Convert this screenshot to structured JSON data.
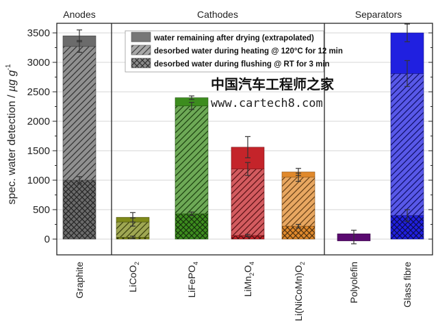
{
  "chart_data": {
    "type": "bar",
    "stacked": true,
    "title": "",
    "xlabel": "",
    "ylabel": "spec. water detection / µg g⁻¹",
    "ylabel_parts": {
      "main": "spec. water detection / ",
      "unit": "µg g",
      "exp": "-1"
    },
    "ylim": [
      -200,
      3700
    ],
    "yticks": [
      0,
      500,
      1000,
      1500,
      2000,
      2500,
      3000,
      3500
    ],
    "grid": true,
    "groups": [
      {
        "label": "Anodes",
        "categories": [
          "Graphite"
        ]
      },
      {
        "label": "Cathodes",
        "categories": [
          "LiCoO2",
          "LiFePO4",
          "LiMn2O4",
          "Li(NiCoMn)O2"
        ]
      },
      {
        "label": "Separators",
        "categories": [
          "Polyolefin",
          "Glass fibre"
        ]
      }
    ],
    "categories": [
      "Graphite",
      "LiCoO2",
      "LiFePO4",
      "LiMn2O4",
      "Li(NiCoMn)O2",
      "Polyolefin",
      "Glass fibre"
    ],
    "category_labels": [
      {
        "text": "Graphite",
        "sub": []
      },
      {
        "text": "LiCoO",
        "sub": [
          "2"
        ]
      },
      {
        "text": "LiFePO",
        "sub": [
          "4"
        ]
      },
      {
        "text": "LiMn",
        "sub": [
          "2",
          "O",
          "4"
        ]
      },
      {
        "text": "Li(NiCoMn)O",
        "sub": [
          "2"
        ]
      },
      {
        "text": "Polyolefin",
        "sub": []
      },
      {
        "text": "Glass fibre",
        "sub": []
      }
    ],
    "colors": [
      "#6b6b6b",
      "#7f8a1a",
      "#3c8c1e",
      "#c4242a",
      "#e0892c",
      "#5a0a70",
      "#2020e0"
    ],
    "series": [
      {
        "name": "desorbed water during flushing @ RT for 3 min",
        "pattern": "crosshatch",
        "values": [
          1000,
          30,
          430,
          60,
          220,
          0,
          400
        ],
        "errors": [
          60,
          20,
          30,
          20,
          30,
          0,
          100
        ]
      },
      {
        "name": "desorbed water during heating @ 120°C for 12 min",
        "pattern": "diagonal",
        "values": [
          2270,
          260,
          1830,
          1130,
          830,
          0,
          2410
        ],
        "errors": [
          100,
          70,
          60,
          110,
          70,
          0,
          220
        ]
      },
      {
        "name": "water remaining after drying (extrapolated)",
        "pattern": "solid",
        "values": [
          180,
          80,
          140,
          370,
          90,
          120,
          690
        ],
        "errors": [
          100,
          80,
          30,
          180,
          60,
          0,
          150
        ]
      }
    ],
    "polyolefin_baseline": -30,
    "polyolefin_error": [
      -80,
      150
    ],
    "legend": {
      "placement": "top-center",
      "entries": [
        {
          "label": "water remaining after drying (extrapolated)",
          "pattern": "solid"
        },
        {
          "label": "desorbed water during heating @ 120°C for 12 min",
          "pattern": "diagonal"
        },
        {
          "label": "desorbed water during flushing @ RT for 3 min",
          "pattern": "crosshatch"
        }
      ]
    }
  },
  "watermark": {
    "cn": "中国汽车工程师之家",
    "url": "www.cartech8.com"
  }
}
